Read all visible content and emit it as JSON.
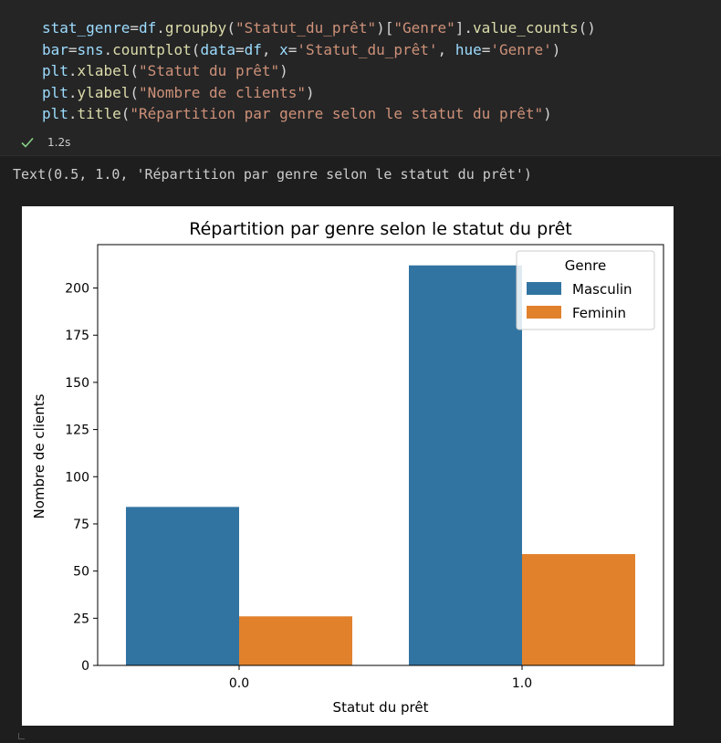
{
  "code_cell": {
    "lines": [
      [
        {
          "t": "stat_genre",
          "c": "var"
        },
        {
          "t": "=",
          "c": "op"
        },
        {
          "t": "df",
          "c": "var"
        },
        {
          "t": ".",
          "c": "op"
        },
        {
          "t": "groupby",
          "c": "fn"
        },
        {
          "t": "(",
          "c": "op"
        },
        {
          "t": "\"Statut_du_prêt\"",
          "c": "str"
        },
        {
          "t": ")[",
          "c": "op"
        },
        {
          "t": "\"Genre\"",
          "c": "str"
        },
        {
          "t": "].",
          "c": "op"
        },
        {
          "t": "value_counts",
          "c": "fn"
        },
        {
          "t": "()",
          "c": "op"
        }
      ],
      [
        {
          "t": "bar",
          "c": "var"
        },
        {
          "t": "=",
          "c": "op"
        },
        {
          "t": "sns",
          "c": "var"
        },
        {
          "t": ".",
          "c": "op"
        },
        {
          "t": "countplot",
          "c": "fn"
        },
        {
          "t": "(",
          "c": "op"
        },
        {
          "t": "data",
          "c": "var"
        },
        {
          "t": "=",
          "c": "op"
        },
        {
          "t": "df",
          "c": "var"
        },
        {
          "t": ", ",
          "c": "op"
        },
        {
          "t": "x",
          "c": "var"
        },
        {
          "t": "=",
          "c": "op"
        },
        {
          "t": "'Statut_du_prêt'",
          "c": "str"
        },
        {
          "t": ", ",
          "c": "op"
        },
        {
          "t": "hue",
          "c": "var"
        },
        {
          "t": "=",
          "c": "op"
        },
        {
          "t": "'Genre'",
          "c": "str"
        },
        {
          "t": ")",
          "c": "op"
        }
      ],
      [
        {
          "t": "plt",
          "c": "var"
        },
        {
          "t": ".",
          "c": "op"
        },
        {
          "t": "xlabel",
          "c": "fn"
        },
        {
          "t": "(",
          "c": "op"
        },
        {
          "t": "\"Statut du prêt\"",
          "c": "str"
        },
        {
          "t": ")",
          "c": "op"
        }
      ],
      [
        {
          "t": "plt",
          "c": "var"
        },
        {
          "t": ".",
          "c": "op"
        },
        {
          "t": "ylabel",
          "c": "fn"
        },
        {
          "t": "(",
          "c": "op"
        },
        {
          "t": "\"Nombre de clients\"",
          "c": "str"
        },
        {
          "t": ")",
          "c": "op"
        }
      ],
      [
        {
          "t": "plt",
          "c": "var"
        },
        {
          "t": ".",
          "c": "op"
        },
        {
          "t": "title",
          "c": "fn"
        },
        {
          "t": "(",
          "c": "op"
        },
        {
          "t": "\"Répartition par genre selon le statut du prêt\"",
          "c": "str"
        },
        {
          "t": ")",
          "c": "op"
        }
      ]
    ],
    "exec_time": "1.2s",
    "success_icon": "check-icon",
    "success_color": "#89d185"
  },
  "output": {
    "text": "Text(0.5, 1.0, 'Répartition par genre selon le statut du prêt')"
  },
  "chart_data": {
    "type": "bar",
    "title": "Répartition par genre selon le statut du prêt",
    "xlabel": "Statut du prêt",
    "ylabel": "Nombre de clients",
    "categories": [
      "0.0",
      "1.0"
    ],
    "series": [
      {
        "name": "Masculin",
        "values": [
          84,
          212
        ],
        "color": "#3274a1"
      },
      {
        "name": "Feminin",
        "values": [
          26,
          59
        ],
        "color": "#e1812c"
      }
    ],
    "ylim": [
      0,
      223
    ],
    "yticks": [
      0,
      25,
      50,
      75,
      100,
      125,
      150,
      175,
      200
    ],
    "legend_title": "Genre",
    "legend_position": "top-right",
    "grid": false
  }
}
